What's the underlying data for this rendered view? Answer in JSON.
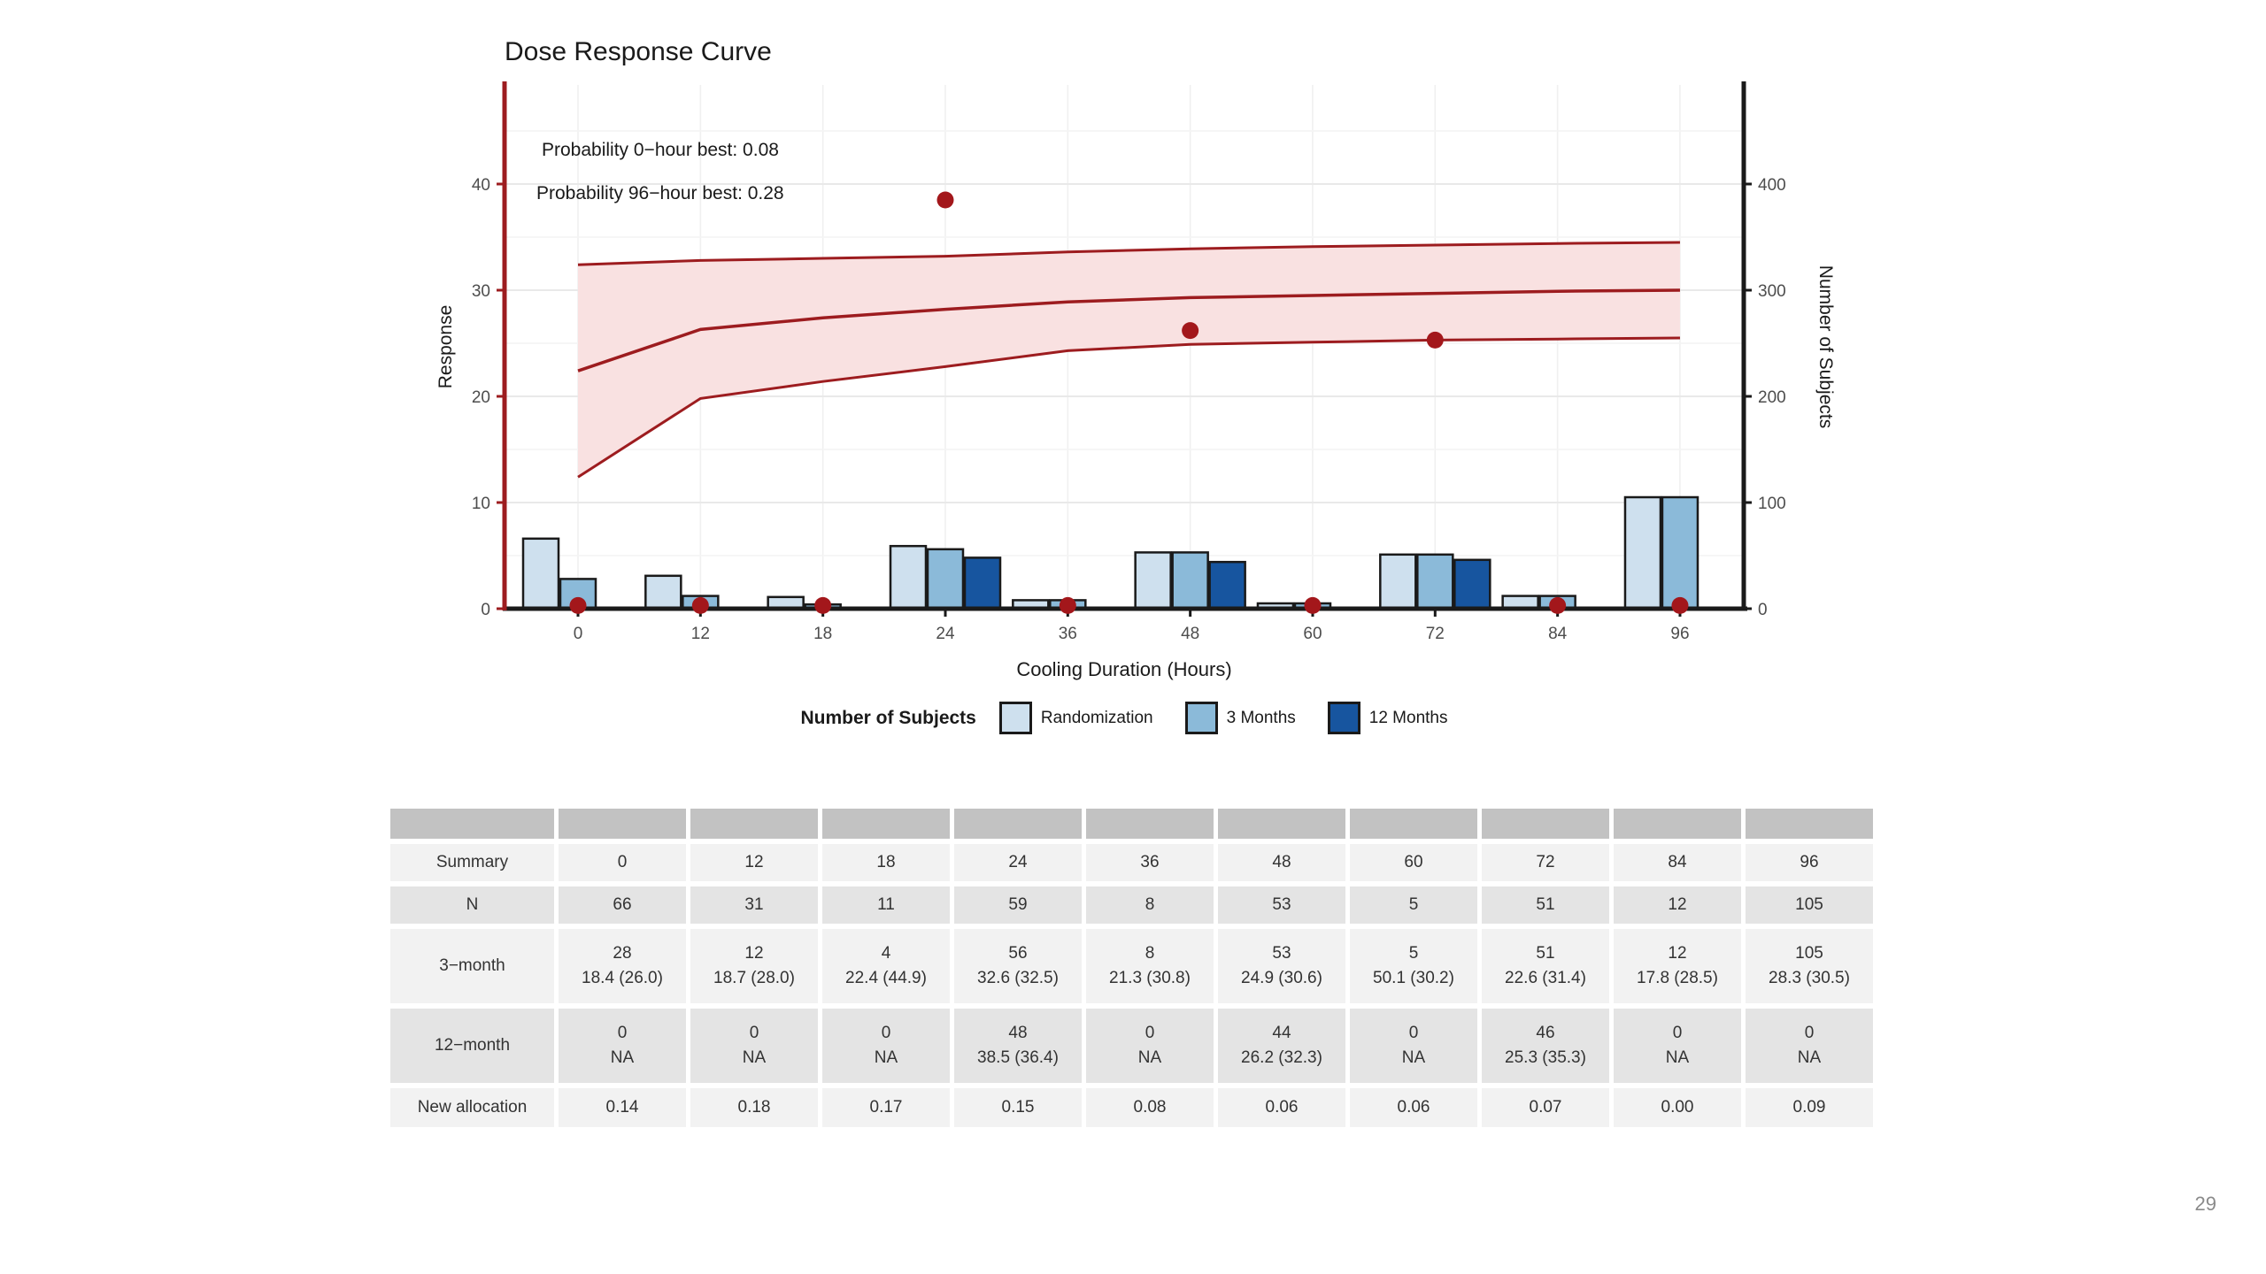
{
  "page": {
    "number": "29"
  },
  "chart_data": {
    "type": "combo-line-bar",
    "title": "Dose Response Curve",
    "annotations": [
      "Probability 0−hour best: 0.08",
      "Probability 96−hour best: 0.28"
    ],
    "xlabel": "Cooling Duration (Hours)",
    "y_left_label": "Response",
    "y_right_label": "Number of Subjects",
    "y_left_ticks": [
      0,
      10,
      20,
      30,
      40
    ],
    "y_right_ticks": [
      0,
      100,
      200,
      300,
      400
    ],
    "y_left_range": [
      0,
      40
    ],
    "y_right_range": [
      0,
      400
    ],
    "categories": [
      "0",
      "12",
      "18",
      "24",
      "36",
      "48",
      "60",
      "72",
      "84",
      "96"
    ],
    "curve": {
      "mean": [
        22.4,
        26.3,
        27.4,
        28.2,
        28.9,
        29.3,
        29.5,
        29.7,
        29.9,
        30.0
      ],
      "upper": [
        32.4,
        32.8,
        33.0,
        33.2,
        33.6,
        33.9,
        34.1,
        34.25,
        34.4,
        34.5
      ],
      "lower": [
        12.4,
        19.8,
        21.4,
        22.8,
        24.3,
        24.9,
        25.1,
        25.3,
        25.4,
        25.5
      ]
    },
    "dots": [
      0.3,
      0.3,
      0.3,
      38.5,
      0.3,
      26.2,
      0.3,
      25.3,
      0.3,
      0.3
    ],
    "bars": {
      "series": [
        {
          "name": "Randomization",
          "color": "#CEE0EE",
          "values": [
            66,
            31,
            11,
            59,
            8,
            53,
            5,
            51,
            12,
            105
          ]
        },
        {
          "name": "3 Months",
          "color": "#8BBAD9",
          "values": [
            28,
            12,
            4,
            56,
            8,
            53,
            5,
            51,
            12,
            105
          ]
        },
        {
          "name": "12 Months",
          "color": "#17559F",
          "values": [
            0,
            0,
            0,
            48,
            0,
            44,
            0,
            46,
            0,
            0
          ]
        }
      ]
    },
    "colors": {
      "curve_red": "#9D1C1F",
      "dot_red": "#A3171B",
      "band_pink": "#F9E1E1",
      "axis_black": "#1a1a1a",
      "tick_text": "#4d4d4d",
      "grid_major": "#E9E9E9",
      "grid_minor": "#F4F4F4",
      "grid_vertical": "#F0F0F0"
    }
  },
  "legend": {
    "title": "Number of Subjects",
    "items": [
      {
        "label": "Randomization",
        "color": "#CEE0EE"
      },
      {
        "label": "3 Months",
        "color": "#8BBAD9"
      },
      {
        "label": "12 Months",
        "color": "#17559F"
      }
    ]
  },
  "table": {
    "columns": [
      "0",
      "12",
      "18",
      "24",
      "36",
      "48",
      "60",
      "72",
      "84",
      "96"
    ],
    "rows": [
      {
        "label": "Summary",
        "type": "single",
        "values": [
          "0",
          "12",
          "18",
          "24",
          "36",
          "48",
          "60",
          "72",
          "84",
          "96"
        ]
      },
      {
        "label": "N",
        "type": "single",
        "values": [
          "66",
          "31",
          "11",
          "59",
          "8",
          "53",
          "5",
          "51",
          "12",
          "105"
        ]
      },
      {
        "label": "3−month",
        "type": "double",
        "values": [
          [
            "28",
            "18.4 (26.0)"
          ],
          [
            "12",
            "18.7 (28.0)"
          ],
          [
            "4",
            "22.4 (44.9)"
          ],
          [
            "56",
            "32.6 (32.5)"
          ],
          [
            "8",
            "21.3 (30.8)"
          ],
          [
            "53",
            "24.9 (30.6)"
          ],
          [
            "5",
            "50.1 (30.2)"
          ],
          [
            "51",
            "22.6 (31.4)"
          ],
          [
            "12",
            "17.8 (28.5)"
          ],
          [
            "105",
            "28.3 (30.5)"
          ]
        ]
      },
      {
        "label": "12−month",
        "type": "double",
        "values": [
          [
            "0",
            "NA"
          ],
          [
            "0",
            "NA"
          ],
          [
            "0",
            "NA"
          ],
          [
            "48",
            "38.5 (36.4)"
          ],
          [
            "0",
            "NA"
          ],
          [
            "44",
            "26.2 (32.3)"
          ],
          [
            "0",
            "NA"
          ],
          [
            "46",
            "25.3 (35.3)"
          ],
          [
            "0",
            "NA"
          ],
          [
            "0",
            "NA"
          ]
        ]
      },
      {
        "label": "New allocation",
        "type": "single",
        "values": [
          "0.14",
          "0.18",
          "0.17",
          "0.15",
          "0.08",
          "0.06",
          "0.06",
          "0.07",
          "0.00",
          "0.09"
        ]
      }
    ]
  }
}
